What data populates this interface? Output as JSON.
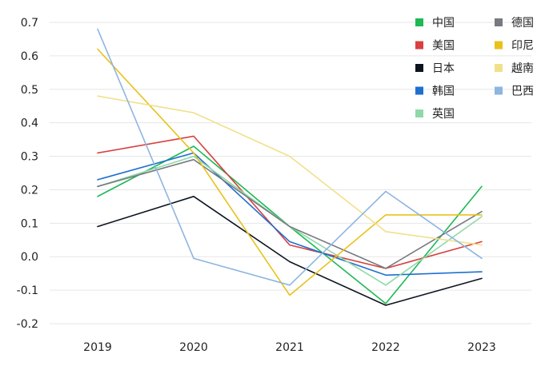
{
  "chart_data": {
    "type": "line",
    "title": "",
    "xlabel": "",
    "ylabel": "",
    "x": [
      "2019",
      "2020",
      "2021",
      "2022",
      "2023"
    ],
    "ylim": [
      -0.2,
      0.7
    ],
    "yticks": [
      "0.7",
      "0.6",
      "0.5",
      "0.4",
      "0.3",
      "0.2",
      "0.1",
      "0.0",
      "-0.1",
      "-0.2"
    ],
    "ytick_values": [
      0.7,
      0.6,
      0.5,
      0.4,
      0.3,
      0.2,
      0.1,
      0.0,
      -0.1,
      -0.2
    ],
    "grid": true,
    "legend_position": "top-right",
    "series": [
      {
        "name": "中国",
        "color": "#1db954",
        "values": [
          0.18,
          0.33,
          0.09,
          -0.14,
          0.21
        ]
      },
      {
        "name": "美国",
        "color": "#d94040",
        "values": [
          0.31,
          0.36,
          0.035,
          -0.035,
          0.045
        ]
      },
      {
        "name": "日本",
        "color": "#0d1420",
        "values": [
          0.09,
          0.18,
          -0.015,
          -0.145,
          -0.065
        ]
      },
      {
        "name": "韩国",
        "color": "#1f6fd1",
        "values": [
          0.23,
          0.31,
          0.045,
          -0.055,
          -0.045
        ]
      },
      {
        "name": "英国",
        "color": "#8fd9a8",
        "values": [
          0.21,
          0.3,
          0.09,
          -0.085,
          0.12
        ]
      },
      {
        "name": "德国",
        "color": "#777a80",
        "values": [
          0.21,
          0.29,
          0.09,
          -0.035,
          0.135
        ]
      },
      {
        "name": "印尼",
        "color": "#e8c21a",
        "values": [
          0.62,
          0.31,
          -0.115,
          0.125,
          0.125
        ]
      },
      {
        "name": "越南",
        "color": "#f1e08a",
        "values": [
          0.48,
          0.43,
          0.3,
          0.075,
          0.035
        ]
      },
      {
        "name": "巴西",
        "color": "#8db6e0",
        "values": [
          0.68,
          -0.005,
          -0.085,
          0.195,
          -0.005
        ]
      }
    ]
  }
}
